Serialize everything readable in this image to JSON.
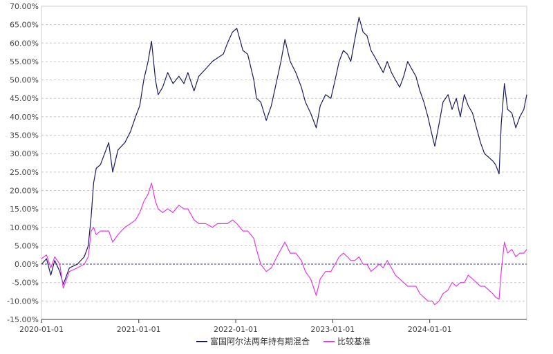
{
  "chart_data": {
    "type": "line",
    "title": "",
    "xlabel": "",
    "ylabel": "",
    "x_range": [
      "2020-01-01",
      "2024-12-31"
    ],
    "x_ticks": [
      "2020-01-01",
      "2021-01-01",
      "2022-01-01",
      "2023-01-01",
      "2024-01-01"
    ],
    "ylim": [
      -15,
      70
    ],
    "y_ticks": [
      -15,
      -10,
      -5,
      0,
      5,
      10,
      15,
      20,
      25,
      30,
      35,
      40,
      45,
      50,
      55,
      60,
      65,
      70
    ],
    "y_tick_labels": [
      "-15.00%",
      "-10.00%",
      "-5.00%",
      "0.00%",
      "5.00%",
      "10.00%",
      "15.00%",
      "20.00%",
      "25.00%",
      "30.00%",
      "35.00%",
      "40.00%",
      "45.00%",
      "50.00%",
      "55.00%",
      "60.00%",
      "65.00%",
      "70.00%"
    ],
    "y_unit": "%",
    "grid": "horizontal-dashed",
    "legend_position": "bottom-center",
    "series": [
      {
        "name": "富国阿尔法两年持有期混合",
        "color": "#1a1a5e",
        "points": [
          [
            "2020-01-01",
            0
          ],
          [
            "2020-01-20",
            1.5
          ],
          [
            "2020-02-05",
            -3
          ],
          [
            "2020-02-20",
            1
          ],
          [
            "2020-03-10",
            -2
          ],
          [
            "2020-03-23",
            -5.5
          ],
          [
            "2020-04-15",
            -1
          ],
          [
            "2020-05-15",
            0
          ],
          [
            "2020-06-10",
            2
          ],
          [
            "2020-06-25",
            5
          ],
          [
            "2020-07-06",
            13
          ],
          [
            "2020-07-15",
            22
          ],
          [
            "2020-07-25",
            26
          ],
          [
            "2020-08-10",
            27
          ],
          [
            "2020-09-10",
            33
          ],
          [
            "2020-09-25",
            25
          ],
          [
            "2020-10-15",
            31
          ],
          [
            "2020-11-10",
            33
          ],
          [
            "2020-12-01",
            36
          ],
          [
            "2020-12-20",
            40
          ],
          [
            "2021-01-05",
            43
          ],
          [
            "2021-01-20",
            50
          ],
          [
            "2021-02-05",
            55
          ],
          [
            "2021-02-18",
            60.5
          ],
          [
            "2021-03-05",
            50
          ],
          [
            "2021-03-15",
            46
          ],
          [
            "2021-04-01",
            48
          ],
          [
            "2021-04-20",
            52
          ],
          [
            "2021-05-10",
            49
          ],
          [
            "2021-06-01",
            51
          ],
          [
            "2021-06-20",
            49
          ],
          [
            "2021-07-05",
            52
          ],
          [
            "2021-07-28",
            47
          ],
          [
            "2021-08-15",
            51
          ],
          [
            "2021-09-10",
            53
          ],
          [
            "2021-10-05",
            55
          ],
          [
            "2021-10-25",
            56
          ],
          [
            "2021-11-15",
            57
          ],
          [
            "2021-12-01",
            60
          ],
          [
            "2021-12-20",
            63
          ],
          [
            "2022-01-05",
            64
          ],
          [
            "2022-01-28",
            58
          ],
          [
            "2022-02-15",
            57
          ],
          [
            "2022-03-10",
            50
          ],
          [
            "2022-03-20",
            45
          ],
          [
            "2022-04-05",
            44
          ],
          [
            "2022-04-26",
            39
          ],
          [
            "2022-05-15",
            43
          ],
          [
            "2022-06-05",
            50
          ],
          [
            "2022-06-20",
            55
          ],
          [
            "2022-07-05",
            61
          ],
          [
            "2022-07-25",
            55
          ],
          [
            "2022-08-15",
            52
          ],
          [
            "2022-09-05",
            48
          ],
          [
            "2022-09-20",
            44
          ],
          [
            "2022-10-10",
            41
          ],
          [
            "2022-10-31",
            37
          ],
          [
            "2022-11-15",
            43
          ],
          [
            "2022-12-05",
            46
          ],
          [
            "2022-12-25",
            45
          ],
          [
            "2023-01-10",
            50
          ],
          [
            "2023-01-25",
            55
          ],
          [
            "2023-02-10",
            58
          ],
          [
            "2023-02-25",
            57
          ],
          [
            "2023-03-10",
            55
          ],
          [
            "2023-03-25",
            61
          ],
          [
            "2023-04-10",
            67
          ],
          [
            "2023-04-25",
            63
          ],
          [
            "2023-05-10",
            62
          ],
          [
            "2023-05-25",
            58
          ],
          [
            "2023-06-10",
            56
          ],
          [
            "2023-06-25",
            54
          ],
          [
            "2023-07-10",
            52
          ],
          [
            "2023-07-25",
            55
          ],
          [
            "2023-08-10",
            52
          ],
          [
            "2023-08-25",
            50
          ],
          [
            "2023-09-10",
            48
          ],
          [
            "2023-09-25",
            51
          ],
          [
            "2023-10-10",
            55
          ],
          [
            "2023-10-25",
            53
          ],
          [
            "2023-11-10",
            51
          ],
          [
            "2023-11-25",
            47
          ],
          [
            "2023-12-10",
            44
          ],
          [
            "2023-12-25",
            40
          ],
          [
            "2024-01-10",
            35
          ],
          [
            "2024-01-20",
            32
          ],
          [
            "2024-02-05",
            38
          ],
          [
            "2024-02-20",
            44
          ],
          [
            "2024-03-10",
            46
          ],
          [
            "2024-03-25",
            42
          ],
          [
            "2024-04-10",
            45
          ],
          [
            "2024-04-25",
            40
          ],
          [
            "2024-05-10",
            46
          ],
          [
            "2024-05-25",
            43
          ],
          [
            "2024-06-10",
            41
          ],
          [
            "2024-06-25",
            37
          ],
          [
            "2024-07-10",
            33
          ],
          [
            "2024-07-25",
            30
          ],
          [
            "2024-08-10",
            29
          ],
          [
            "2024-08-25",
            28
          ],
          [
            "2024-09-05",
            27
          ],
          [
            "2024-09-18",
            24.5
          ],
          [
            "2024-09-26",
            38
          ],
          [
            "2024-10-08",
            49
          ],
          [
            "2024-10-20",
            42
          ],
          [
            "2024-11-05",
            41
          ],
          [
            "2024-11-20",
            37
          ],
          [
            "2024-12-05",
            40
          ],
          [
            "2024-12-20",
            42
          ],
          [
            "2024-12-31",
            46
          ]
        ]
      },
      {
        "name": "比较基准",
        "color": "#e63ae6",
        "points": [
          [
            "2020-01-01",
            1.5
          ],
          [
            "2020-01-20",
            2.5
          ],
          [
            "2020-02-05",
            -1
          ],
          [
            "2020-02-20",
            2
          ],
          [
            "2020-03-10",
            0
          ],
          [
            "2020-03-23",
            -6.5
          ],
          [
            "2020-04-15",
            -2
          ],
          [
            "2020-05-15",
            -1
          ],
          [
            "2020-06-10",
            0
          ],
          [
            "2020-06-25",
            2
          ],
          [
            "2020-07-06",
            9
          ],
          [
            "2020-07-15",
            10
          ],
          [
            "2020-07-25",
            8
          ],
          [
            "2020-08-10",
            9
          ],
          [
            "2020-09-10",
            9
          ],
          [
            "2020-09-25",
            6
          ],
          [
            "2020-10-15",
            8
          ],
          [
            "2020-11-10",
            10
          ],
          [
            "2020-12-01",
            11
          ],
          [
            "2020-12-20",
            12
          ],
          [
            "2021-01-05",
            14
          ],
          [
            "2021-01-20",
            17
          ],
          [
            "2021-02-05",
            19
          ],
          [
            "2021-02-18",
            22
          ],
          [
            "2021-03-05",
            17
          ],
          [
            "2021-03-15",
            15
          ],
          [
            "2021-04-01",
            14
          ],
          [
            "2021-04-20",
            15
          ],
          [
            "2021-05-10",
            14
          ],
          [
            "2021-06-01",
            16
          ],
          [
            "2021-06-20",
            15
          ],
          [
            "2021-07-05",
            15
          ],
          [
            "2021-07-28",
            12
          ],
          [
            "2021-08-15",
            11
          ],
          [
            "2021-09-10",
            11
          ],
          [
            "2021-10-05",
            10
          ],
          [
            "2021-10-25",
            11
          ],
          [
            "2021-11-15",
            11
          ],
          [
            "2021-12-01",
            11
          ],
          [
            "2021-12-20",
            12
          ],
          [
            "2022-01-05",
            11
          ],
          [
            "2022-01-28",
            9
          ],
          [
            "2022-02-15",
            9
          ],
          [
            "2022-03-10",
            7
          ],
          [
            "2022-03-20",
            4
          ],
          [
            "2022-04-05",
            0
          ],
          [
            "2022-04-26",
            -2
          ],
          [
            "2022-05-15",
            -1
          ],
          [
            "2022-06-05",
            2
          ],
          [
            "2022-06-20",
            4
          ],
          [
            "2022-07-05",
            6
          ],
          [
            "2022-07-25",
            3
          ],
          [
            "2022-08-15",
            3
          ],
          [
            "2022-09-05",
            1
          ],
          [
            "2022-09-20",
            -2
          ],
          [
            "2022-10-10",
            -4
          ],
          [
            "2022-10-31",
            -8.5
          ],
          [
            "2022-11-15",
            -4
          ],
          [
            "2022-12-05",
            -2
          ],
          [
            "2022-12-25",
            -2
          ],
          [
            "2023-01-10",
            0
          ],
          [
            "2023-01-25",
            2
          ],
          [
            "2023-02-10",
            3
          ],
          [
            "2023-02-25",
            2
          ],
          [
            "2023-03-10",
            1
          ],
          [
            "2023-03-25",
            1
          ],
          [
            "2023-04-10",
            2
          ],
          [
            "2023-04-25",
            0
          ],
          [
            "2023-05-10",
            0
          ],
          [
            "2023-05-25",
            -2
          ],
          [
            "2023-06-10",
            -1
          ],
          [
            "2023-06-25",
            0
          ],
          [
            "2023-07-10",
            -1
          ],
          [
            "2023-07-25",
            1
          ],
          [
            "2023-08-10",
            -1
          ],
          [
            "2023-08-25",
            -3
          ],
          [
            "2023-09-10",
            -4
          ],
          [
            "2023-09-25",
            -5
          ],
          [
            "2023-10-10",
            -6
          ],
          [
            "2023-10-25",
            -6
          ],
          [
            "2023-11-10",
            -6
          ],
          [
            "2023-11-25",
            -8
          ],
          [
            "2023-12-10",
            -9
          ],
          [
            "2023-12-25",
            -10
          ],
          [
            "2024-01-10",
            -10
          ],
          [
            "2024-01-20",
            -11
          ],
          [
            "2024-02-05",
            -10
          ],
          [
            "2024-02-20",
            -8
          ],
          [
            "2024-03-10",
            -7
          ],
          [
            "2024-03-25",
            -5
          ],
          [
            "2024-04-10",
            -6
          ],
          [
            "2024-04-25",
            -5
          ],
          [
            "2024-05-10",
            -5
          ],
          [
            "2024-05-25",
            -3
          ],
          [
            "2024-06-10",
            -4
          ],
          [
            "2024-06-25",
            -5
          ],
          [
            "2024-07-10",
            -6
          ],
          [
            "2024-07-25",
            -6
          ],
          [
            "2024-08-10",
            -7
          ],
          [
            "2024-08-25",
            -8
          ],
          [
            "2024-09-05",
            -9
          ],
          [
            "2024-09-18",
            -9.5
          ],
          [
            "2024-09-26",
            -2
          ],
          [
            "2024-10-08",
            6
          ],
          [
            "2024-10-20",
            3
          ],
          [
            "2024-11-05",
            4
          ],
          [
            "2024-11-20",
            2
          ],
          [
            "2024-12-05",
            3
          ],
          [
            "2024-12-20",
            3
          ],
          [
            "2024-12-31",
            4
          ]
        ]
      }
    ]
  }
}
